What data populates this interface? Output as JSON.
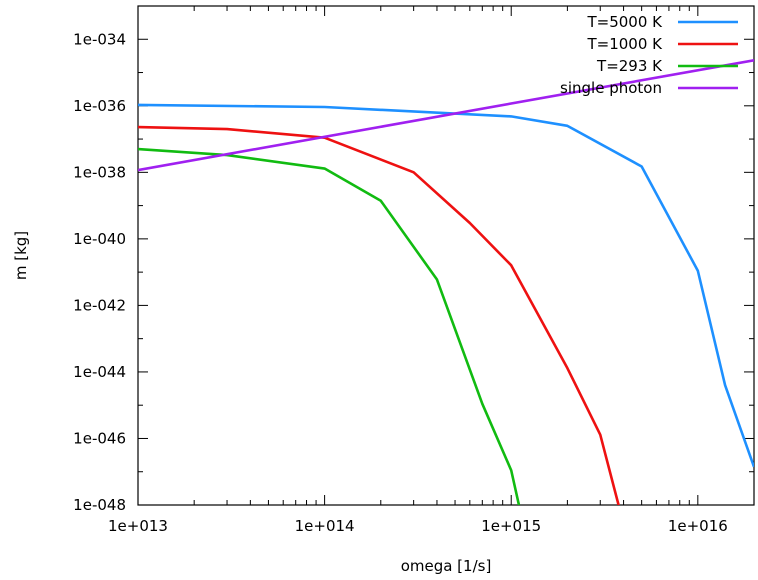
{
  "chart_data": {
    "type": "line",
    "xlabel": "omega [1/s]",
    "ylabel": "m [kg]",
    "x_scale": "log",
    "y_scale": "log",
    "xlim": [
      10000000000000.0,
      2e+16
    ],
    "ylim": [
      1e-48,
      1e-33
    ],
    "x_ticks": [
      {
        "value": 10000000000000.0,
        "label": "1e+013"
      },
      {
        "value": 100000000000000.0,
        "label": "1e+014"
      },
      {
        "value": 1000000000000000.0,
        "label": "1e+015"
      },
      {
        "value": 1e+16,
        "label": "1e+016"
      }
    ],
    "y_ticks": [
      {
        "value": 1e-34,
        "label": "1e-034"
      },
      {
        "value": 1e-36,
        "label": "1e-036"
      },
      {
        "value": 1e-38,
        "label": "1e-038"
      },
      {
        "value": 1e-40,
        "label": "1e-040"
      },
      {
        "value": 1e-42,
        "label": "1e-042"
      },
      {
        "value": 1e-44,
        "label": "1e-044"
      },
      {
        "value": 1e-46,
        "label": "1e-046"
      },
      {
        "value": 1e-48,
        "label": "1e-048"
      }
    ],
    "grid": false,
    "legend_position": "top-right",
    "series": [
      {
        "name": "T=5000 K",
        "color": "#1e90ff",
        "x": [
          10000000000000.0,
          100000000000000.0,
          1000000000000000.0,
          2000000000000000.0,
          5000000000000000.0,
          1e+16,
          1.4e+16,
          2e+16
        ],
        "y": [
          1.06e-36,
          9.2e-37,
          4.8e-37,
          2.5e-37,
          1.5e-38,
          1.1e-41,
          4e-45,
          1.4e-47
        ]
      },
      {
        "name": "T=1000 K",
        "color": "#ee1111",
        "x": [
          10000000000000.0,
          30000000000000.0,
          100000000000000.0,
          300000000000000.0,
          600000000000000.0,
          1000000000000000.0,
          2000000000000000.0,
          3000000000000000.0,
          3800000000000000.0
        ],
        "y": [
          2.3e-37,
          2e-37,
          1.1e-37,
          1e-38,
          3e-40,
          1.6e-41,
          1.3e-44,
          1.3e-46,
          8e-49
        ]
      },
      {
        "name": "T=293 K",
        "color": "#11bb11",
        "x": [
          10000000000000.0,
          30000000000000.0,
          100000000000000.0,
          200000000000000.0,
          400000000000000.0,
          700000000000000.0,
          1000000000000000.0,
          1100000000000000.0
        ],
        "y": [
          5e-38,
          3.3e-38,
          1.3e-38,
          1.4e-39,
          6e-42,
          1.1e-45,
          1.1e-47,
          1e-48
        ]
      },
      {
        "name": "single photon",
        "color": "#a020f0",
        "x": [
          10000000000000.0,
          2e+16
        ],
        "y": [
          1.17e-38,
          2.34e-35
        ]
      }
    ]
  }
}
